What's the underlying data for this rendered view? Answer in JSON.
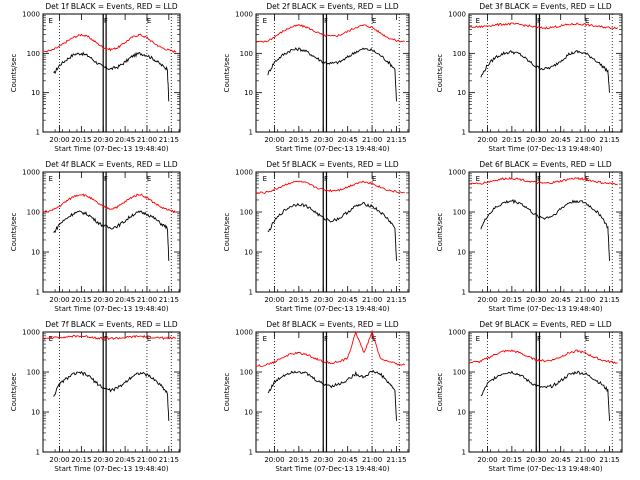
{
  "figure": {
    "xlabel": "Start Time (07-Dec-13 19:48:40)",
    "ylabel": "Counts/sec",
    "time_ticks": [
      "20:00",
      "20:15",
      "20:30",
      "20:45",
      "21:00",
      "21:15"
    ],
    "count_ticks": [
      "1",
      "10",
      "100",
      "1000"
    ],
    "marker_labels": [
      "E",
      "F",
      "E"
    ],
    "colors": {
      "events": "#000000",
      "lld": "#ff0000",
      "axes": "#000000"
    }
  },
  "chart_data": [
    {
      "type": "line",
      "title": "Det 1f BLACK = Events, RED = LLD",
      "xlim": [
        "19:48:40",
        "21:23"
      ],
      "ylim": [
        1,
        1000
      ],
      "yscale": "log",
      "series": [
        {
          "color": "#000000",
          "x": [
            "19:56",
            "20:00",
            "20:05",
            "20:10",
            "20:15",
            "20:20",
            "20:25",
            "20:30",
            "20:35",
            "20:40",
            "20:45",
            "20:50",
            "20:55",
            "21:00",
            "21:05",
            "21:10",
            "21:14",
            "21:15"
          ],
          "values": [
            30,
            50,
            70,
            95,
            100,
            85,
            60,
            45,
            40,
            45,
            60,
            85,
            100,
            90,
            70,
            50,
            40,
            6
          ]
        },
        {
          "color": "#ff0000",
          "x": [
            "19:48",
            "19:55",
            "20:00",
            "20:05",
            "20:10",
            "20:15",
            "20:20",
            "20:25",
            "20:30",
            "20:35",
            "20:40",
            "20:45",
            "20:50",
            "20:55",
            "21:00",
            "21:05",
            "21:10",
            "21:15",
            "21:20"
          ],
          "values": [
            110,
            120,
            150,
            200,
            260,
            300,
            260,
            190,
            140,
            125,
            140,
            190,
            260,
            300,
            250,
            180,
            140,
            120,
            110
          ]
        }
      ]
    },
    {
      "type": "line",
      "title": "Det 2f BLACK = Events, RED = LLD",
      "xlim": [
        "19:48:40",
        "21:23"
      ],
      "ylim": [
        1,
        1000
      ],
      "yscale": "log",
      "series": [
        {
          "color": "#000000",
          "x": [
            "19:56",
            "20:00",
            "20:05",
            "20:10",
            "20:15",
            "20:20",
            "20:25",
            "20:30",
            "20:35",
            "20:40",
            "20:45",
            "20:50",
            "20:55",
            "21:00",
            "21:05",
            "21:10",
            "21:14",
            "21:15"
          ],
          "values": [
            30,
            60,
            90,
            120,
            130,
            110,
            80,
            60,
            55,
            60,
            80,
            110,
            130,
            120,
            90,
            60,
            40,
            6
          ]
        },
        {
          "color": "#ff0000",
          "x": [
            "19:48",
            "19:55",
            "20:00",
            "20:05",
            "20:10",
            "20:15",
            "20:20",
            "20:25",
            "20:30",
            "20:35",
            "20:40",
            "20:45",
            "20:50",
            "20:55",
            "21:00",
            "21:05",
            "21:10",
            "21:15",
            "21:20"
          ],
          "values": [
            190,
            200,
            260,
            360,
            460,
            520,
            460,
            360,
            290,
            270,
            290,
            360,
            460,
            520,
            460,
            330,
            250,
            210,
            200
          ]
        }
      ]
    },
    {
      "type": "line",
      "title": "Det 3f BLACK = Events, RED = LLD",
      "xlim": [
        "19:48:40",
        "21:23"
      ],
      "ylim": [
        1,
        1000
      ],
      "yscale": "log",
      "series": [
        {
          "color": "#000000",
          "x": [
            "19:56",
            "20:00",
            "20:05",
            "20:10",
            "20:15",
            "20:20",
            "20:25",
            "20:30",
            "20:35",
            "20:40",
            "20:45",
            "20:50",
            "20:55",
            "21:00",
            "21:05",
            "21:10",
            "21:14",
            "21:15"
          ],
          "values": [
            25,
            50,
            80,
            100,
            110,
            95,
            65,
            45,
            40,
            45,
            65,
            95,
            110,
            100,
            75,
            50,
            35,
            10
          ]
        },
        {
          "color": "#ff0000",
          "x": [
            "19:48",
            "19:55",
            "20:00",
            "20:05",
            "20:10",
            "20:15",
            "20:20",
            "20:25",
            "20:30",
            "20:35",
            "20:40",
            "20:45",
            "20:50",
            "20:55",
            "21:00",
            "21:05",
            "21:10",
            "21:15",
            "21:20"
          ],
          "values": [
            460,
            470,
            500,
            530,
            550,
            560,
            540,
            500,
            460,
            440,
            460,
            500,
            540,
            560,
            540,
            500,
            470,
            450,
            450
          ]
        }
      ]
    },
    {
      "type": "line",
      "title": "Det 4f BLACK = Events, RED = LLD",
      "xlim": [
        "19:48:40",
        "21:23"
      ],
      "ylim": [
        1,
        1000
      ],
      "yscale": "log",
      "series": [
        {
          "color": "#000000",
          "x": [
            "19:56",
            "20:00",
            "20:05",
            "20:10",
            "20:15",
            "20:20",
            "20:25",
            "20:30",
            "20:35",
            "20:40",
            "20:45",
            "20:50",
            "20:55",
            "21:00",
            "21:05",
            "21:10",
            "21:14",
            "21:15"
          ],
          "values": [
            30,
            50,
            70,
            95,
            100,
            85,
            60,
            45,
            40,
            45,
            60,
            85,
            100,
            90,
            70,
            50,
            40,
            6
          ]
        },
        {
          "color": "#ff0000",
          "x": [
            "19:48",
            "19:55",
            "20:00",
            "20:05",
            "20:10",
            "20:15",
            "20:20",
            "20:25",
            "20:30",
            "20:35",
            "20:40",
            "20:45",
            "20:50",
            "20:55",
            "21:00",
            "21:05",
            "21:10",
            "21:15",
            "21:20"
          ],
          "values": [
            100,
            110,
            140,
            190,
            250,
            280,
            240,
            180,
            135,
            120,
            135,
            180,
            240,
            280,
            230,
            170,
            130,
            110,
            100
          ]
        }
      ]
    },
    {
      "type": "line",
      "title": "Det 5f BLACK = Events, RED = LLD",
      "xlim": [
        "19:48:40",
        "21:23"
      ],
      "ylim": [
        1,
        1000
      ],
      "yscale": "log",
      "series": [
        {
          "color": "#000000",
          "x": [
            "19:56",
            "20:00",
            "20:05",
            "20:10",
            "20:15",
            "20:20",
            "20:25",
            "20:30",
            "20:35",
            "20:40",
            "20:45",
            "20:50",
            "20:55",
            "21:00",
            "21:05",
            "21:10",
            "21:14",
            "21:15"
          ],
          "values": [
            30,
            60,
            100,
            140,
            160,
            140,
            100,
            70,
            60,
            70,
            100,
            140,
            160,
            140,
            100,
            65,
            40,
            6
          ]
        },
        {
          "color": "#ff0000",
          "x": [
            "19:48",
            "19:55",
            "20:00",
            "20:05",
            "20:10",
            "20:15",
            "20:20",
            "20:25",
            "20:30",
            "20:35",
            "20:40",
            "20:45",
            "20:50",
            "20:55",
            "21:00",
            "21:05",
            "21:10",
            "21:15",
            "21:20"
          ],
          "values": [
            290,
            310,
            360,
            450,
            540,
            580,
            520,
            420,
            360,
            340,
            360,
            420,
            520,
            580,
            520,
            420,
            350,
            320,
            300
          ]
        }
      ]
    },
    {
      "type": "line",
      "title": "Det 6f BLACK = Events, RED = LLD",
      "xlim": [
        "19:48:40",
        "21:23"
      ],
      "ylim": [
        1,
        1000
      ],
      "yscale": "log",
      "series": [
        {
          "color": "#000000",
          "x": [
            "19:56",
            "20:00",
            "20:05",
            "20:10",
            "20:15",
            "20:20",
            "20:25",
            "20:30",
            "20:35",
            "20:40",
            "20:45",
            "20:50",
            "20:55",
            "21:00",
            "21:05",
            "21:10",
            "21:14",
            "21:15"
          ],
          "values": [
            40,
            80,
            130,
            170,
            190,
            170,
            120,
            80,
            70,
            80,
            120,
            170,
            190,
            170,
            120,
            80,
            40,
            6
          ]
        },
        {
          "color": "#ff0000",
          "x": [
            "19:48",
            "19:55",
            "20:00",
            "20:05",
            "20:10",
            "20:15",
            "20:20",
            "20:25",
            "20:30",
            "20:35",
            "20:40",
            "20:45",
            "20:50",
            "20:55",
            "21:00",
            "21:05",
            "21:10",
            "21:15",
            "21:20"
          ],
          "values": [
            500,
            510,
            560,
            620,
            680,
            700,
            660,
            590,
            540,
            520,
            540,
            590,
            660,
            700,
            660,
            590,
            540,
            510,
            500
          ]
        }
      ]
    },
    {
      "type": "line",
      "title": "Det 7f BLACK = Events, RED = LLD",
      "xlim": [
        "19:48:40",
        "21:23"
      ],
      "ylim": [
        1,
        1000
      ],
      "yscale": "log",
      "series": [
        {
          "color": "#000000",
          "x": [
            "19:56",
            "20:00",
            "20:05",
            "20:10",
            "20:15",
            "20:20",
            "20:25",
            "20:30",
            "20:35",
            "20:40",
            "20:45",
            "20:50",
            "20:55",
            "21:00",
            "21:05",
            "21:10",
            "21:14",
            "21:15"
          ],
          "values": [
            25,
            50,
            70,
            90,
            95,
            80,
            55,
            40,
            35,
            40,
            55,
            80,
            95,
            85,
            65,
            45,
            30,
            6
          ]
        },
        {
          "color": "#ff0000",
          "x": [
            "19:48",
            "19:55",
            "20:00",
            "20:05",
            "20:10",
            "20:15",
            "20:20",
            "20:25",
            "20:30",
            "20:35",
            "20:40",
            "20:45",
            "20:50",
            "20:55",
            "21:00",
            "21:05",
            "21:10",
            "21:15",
            "21:20"
          ],
          "values": [
            700,
            720,
            740,
            760,
            780,
            790,
            760,
            720,
            700,
            690,
            700,
            720,
            760,
            780,
            760,
            730,
            710,
            700,
            700
          ]
        }
      ]
    },
    {
      "type": "line",
      "title": "Det 8f BLACK = Events, RED = LLD",
      "xlim": [
        "19:48:40",
        "21:23"
      ],
      "ylim": [
        1,
        1000
      ],
      "yscale": "log",
      "series": [
        {
          "color": "#000000",
          "x": [
            "19:56",
            "20:00",
            "20:05",
            "20:10",
            "20:15",
            "20:20",
            "20:25",
            "20:30",
            "20:35",
            "20:40",
            "20:45",
            "20:50",
            "20:55",
            "21:00",
            "21:05",
            "21:10",
            "21:14",
            "21:15"
          ],
          "values": [
            30,
            55,
            80,
            100,
            105,
            90,
            65,
            50,
            45,
            50,
            65,
            90,
            75,
            105,
            90,
            55,
            35,
            6
          ]
        },
        {
          "color": "#ff0000",
          "x": [
            "19:48",
            "19:55",
            "20:00",
            "20:05",
            "20:10",
            "20:15",
            "20:20",
            "20:25",
            "20:30",
            "20:35",
            "20:40",
            "20:45",
            "20:50",
            "20:55",
            "21:00",
            "21:05",
            "21:10",
            "21:15",
            "21:20"
          ],
          "values": [
            140,
            150,
            180,
            230,
            280,
            300,
            270,
            220,
            180,
            170,
            180,
            220,
            1000,
            300,
            1000,
            220,
            180,
            160,
            150
          ]
        }
      ]
    },
    {
      "type": "line",
      "title": "Det 9f BLACK = Events, RED = LLD",
      "xlim": [
        "19:48:40",
        "21:23"
      ],
      "ylim": [
        1,
        1000
      ],
      "yscale": "log",
      "series": [
        {
          "color": "#000000",
          "x": [
            "19:56",
            "20:00",
            "20:05",
            "20:10",
            "20:15",
            "20:20",
            "20:25",
            "20:30",
            "20:35",
            "20:40",
            "20:45",
            "20:50",
            "20:55",
            "21:00",
            "21:05",
            "21:10",
            "21:14",
            "21:15"
          ],
          "values": [
            25,
            50,
            75,
            95,
            100,
            85,
            60,
            45,
            40,
            45,
            60,
            85,
            100,
            90,
            70,
            50,
            35,
            6
          ]
        },
        {
          "color": "#ff0000",
          "x": [
            "19:48",
            "19:55",
            "20:00",
            "20:05",
            "20:10",
            "20:15",
            "20:20",
            "20:25",
            "20:30",
            "20:35",
            "20:40",
            "20:45",
            "20:50",
            "20:55",
            "21:00",
            "21:05",
            "21:10",
            "21:15",
            "21:20"
          ],
          "values": [
            170,
            180,
            220,
            280,
            330,
            340,
            300,
            240,
            200,
            190,
            200,
            240,
            300,
            340,
            300,
            240,
            200,
            180,
            170
          ]
        }
      ]
    }
  ]
}
